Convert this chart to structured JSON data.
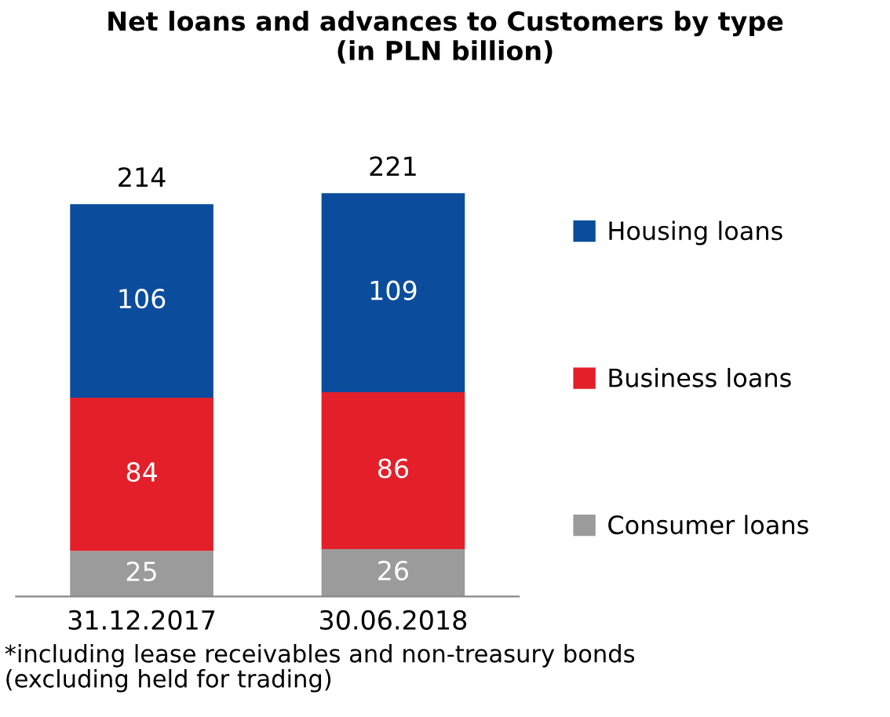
{
  "chart_data": {
    "type": "bar",
    "stacked": true,
    "title": "Net loans and advances to Customers by type\n(in PLN billion)",
    "categories": [
      "31.12.2017",
      "30.06.2018"
    ],
    "series": [
      {
        "name": "Consumer loans",
        "color": "#9b9b9b",
        "values": [
          25,
          26
        ]
      },
      {
        "name": "Business loans",
        "color": "#e3202a",
        "values": [
          84,
          86
        ]
      },
      {
        "name": "Housing loans",
        "color": "#0b4c9c",
        "values": [
          106,
          109
        ]
      }
    ],
    "data_labels": true,
    "totals": [
      "214",
      "221"
    ],
    "legend": "right",
    "grid": false,
    "annotations": [
      "*including lease receivables and non-treasury bonds\n(excluding held for trading)"
    ]
  }
}
